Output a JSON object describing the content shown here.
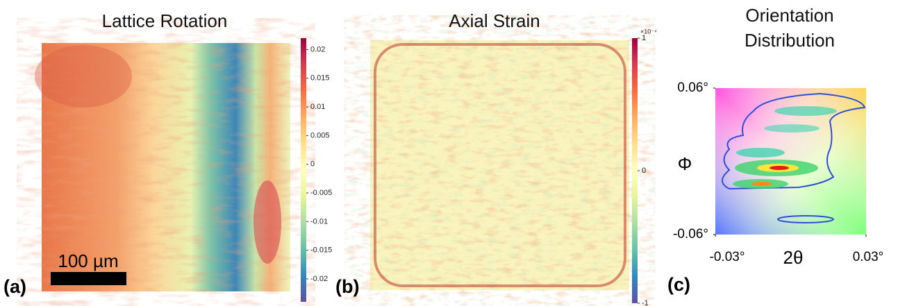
{
  "panels": [
    {
      "label": "(a)",
      "title": "Lattice Rotation",
      "scale_bar": "100 µm",
      "colorbar": {
        "lim": [
          -0.024,
          0.022
        ],
        "ticks": [
          0.02,
          0.015,
          0.01,
          0.005,
          0,
          -0.005,
          -0.01,
          -0.015,
          -0.02
        ]
      }
    },
    {
      "label": "(b)",
      "title": "Axial Strain",
      "colorbar": {
        "lim": [
          -1,
          1
        ],
        "ticks": [
          1,
          0,
          -1
        ],
        "exponent": "×10⁻⁴"
      }
    },
    {
      "label": "(c)",
      "title": "Orientation Distribution",
      "x_label": "2θ",
      "y_label": "Φ",
      "xlim": [
        -0.03,
        0.03
      ],
      "ylim": [
        -0.06,
        0.06
      ],
      "xticks": [
        {
          "value": -0.03,
          "label": "-0.03°"
        },
        {
          "value": 0.03,
          "label": "0.03°"
        }
      ],
      "yticks": [
        {
          "value": 0.06,
          "label": "0.06°"
        },
        {
          "value": -0.06,
          "label": "-0.06°"
        }
      ]
    }
  ]
}
